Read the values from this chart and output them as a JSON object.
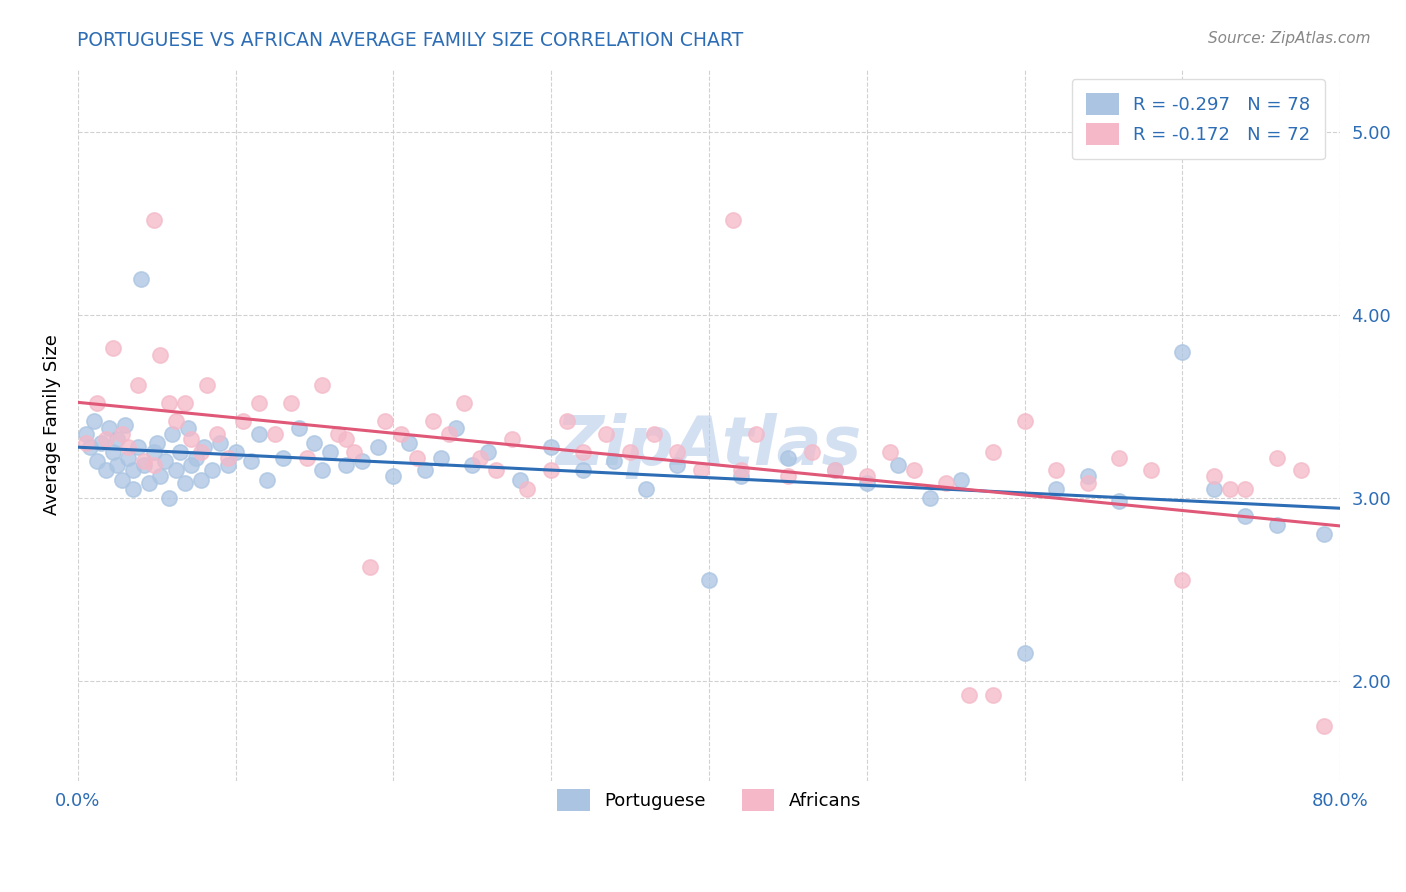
{
  "title": "PORTUGUESE VS AFRICAN AVERAGE FAMILY SIZE CORRELATION CHART",
  "source": "Source: ZipAtlas.com",
  "ylabel": "Average Family Size",
  "xlim": [
    0.0,
    0.8
  ],
  "ylim": [
    1.45,
    5.35
  ],
  "yticks": [
    2.0,
    3.0,
    4.0,
    5.0
  ],
  "xticks": [
    0.0,
    0.1,
    0.2,
    0.3,
    0.4,
    0.5,
    0.6,
    0.7,
    0.8
  ],
  "portuguese_color": "#aac4e2",
  "african_color": "#f4b8c8",
  "portuguese_line_color": "#2d6db5",
  "african_line_color": "#e05878",
  "title_color": "#2d6db5",
  "ytick_color": "#2d6db5",
  "xtick_color": "#2d6db5",
  "legend_text_color": "#2d6db5",
  "watermark_color": "#b0c8e8",
  "portuguese_R": -0.297,
  "portuguese_N": 78,
  "african_R": -0.172,
  "african_N": 72,
  "portuguese_x": [
    0.005,
    0.008,
    0.01,
    0.012,
    0.015,
    0.018,
    0.02,
    0.022,
    0.025,
    0.025,
    0.028,
    0.03,
    0.032,
    0.035,
    0.035,
    0.038,
    0.04,
    0.042,
    0.045,
    0.048,
    0.05,
    0.052,
    0.055,
    0.058,
    0.06,
    0.062,
    0.065,
    0.068,
    0.07,
    0.072,
    0.075,
    0.078,
    0.08,
    0.085,
    0.09,
    0.095,
    0.1,
    0.11,
    0.115,
    0.12,
    0.13,
    0.14,
    0.15,
    0.155,
    0.16,
    0.17,
    0.18,
    0.19,
    0.2,
    0.21,
    0.22,
    0.23,
    0.24,
    0.25,
    0.26,
    0.28,
    0.3,
    0.32,
    0.34,
    0.36,
    0.38,
    0.4,
    0.42,
    0.45,
    0.48,
    0.5,
    0.52,
    0.54,
    0.56,
    0.6,
    0.62,
    0.64,
    0.66,
    0.7,
    0.72,
    0.74,
    0.76,
    0.79
  ],
  "portuguese_y": [
    3.35,
    3.28,
    3.42,
    3.2,
    3.3,
    3.15,
    3.38,
    3.25,
    3.32,
    3.18,
    3.1,
    3.4,
    3.22,
    3.15,
    3.05,
    3.28,
    4.2,
    3.18,
    3.08,
    3.25,
    3.3,
    3.12,
    3.2,
    3.0,
    3.35,
    3.15,
    3.25,
    3.08,
    3.38,
    3.18,
    3.22,
    3.1,
    3.28,
    3.15,
    3.3,
    3.18,
    3.25,
    3.2,
    3.35,
    3.1,
    3.22,
    3.38,
    3.3,
    3.15,
    3.25,
    3.18,
    3.2,
    3.28,
    3.12,
    3.3,
    3.15,
    3.22,
    3.38,
    3.18,
    3.25,
    3.1,
    3.28,
    3.15,
    3.2,
    3.05,
    3.18,
    2.55,
    3.12,
    3.22,
    3.15,
    3.08,
    3.18,
    3.0,
    3.1,
    2.15,
    3.05,
    3.12,
    2.98,
    3.8,
    3.05,
    2.9,
    2.85,
    2.8
  ],
  "african_x": [
    0.005,
    0.012,
    0.018,
    0.022,
    0.028,
    0.032,
    0.038,
    0.042,
    0.048,
    0.052,
    0.058,
    0.062,
    0.068,
    0.072,
    0.078,
    0.082,
    0.088,
    0.095,
    0.105,
    0.115,
    0.125,
    0.135,
    0.145,
    0.155,
    0.165,
    0.175,
    0.185,
    0.195,
    0.205,
    0.215,
    0.225,
    0.235,
    0.245,
    0.255,
    0.265,
    0.275,
    0.285,
    0.3,
    0.31,
    0.32,
    0.335,
    0.35,
    0.365,
    0.38,
    0.395,
    0.415,
    0.43,
    0.45,
    0.465,
    0.48,
    0.5,
    0.515,
    0.53,
    0.55,
    0.565,
    0.58,
    0.6,
    0.62,
    0.64,
    0.66,
    0.68,
    0.7,
    0.72,
    0.74,
    0.76,
    0.775,
    0.79,
    0.048,
    0.17,
    0.42,
    0.58,
    0.73
  ],
  "african_y": [
    3.3,
    3.52,
    3.32,
    3.82,
    3.35,
    3.28,
    3.62,
    3.2,
    4.52,
    3.78,
    3.52,
    3.42,
    3.52,
    3.32,
    3.25,
    3.62,
    3.35,
    3.22,
    3.42,
    3.52,
    3.35,
    3.52,
    3.22,
    3.62,
    3.35,
    3.25,
    2.62,
    3.42,
    3.35,
    3.22,
    3.42,
    3.35,
    3.52,
    3.22,
    3.15,
    3.32,
    3.05,
    3.15,
    3.42,
    3.25,
    3.35,
    3.25,
    3.35,
    3.25,
    3.15,
    4.52,
    3.35,
    3.12,
    3.25,
    3.15,
    3.12,
    3.25,
    3.15,
    3.08,
    1.92,
    3.25,
    3.42,
    3.15,
    3.08,
    3.22,
    3.15,
    2.55,
    3.12,
    3.05,
    3.22,
    3.15,
    1.75,
    3.18,
    3.32,
    3.15,
    1.92,
    3.05
  ]
}
